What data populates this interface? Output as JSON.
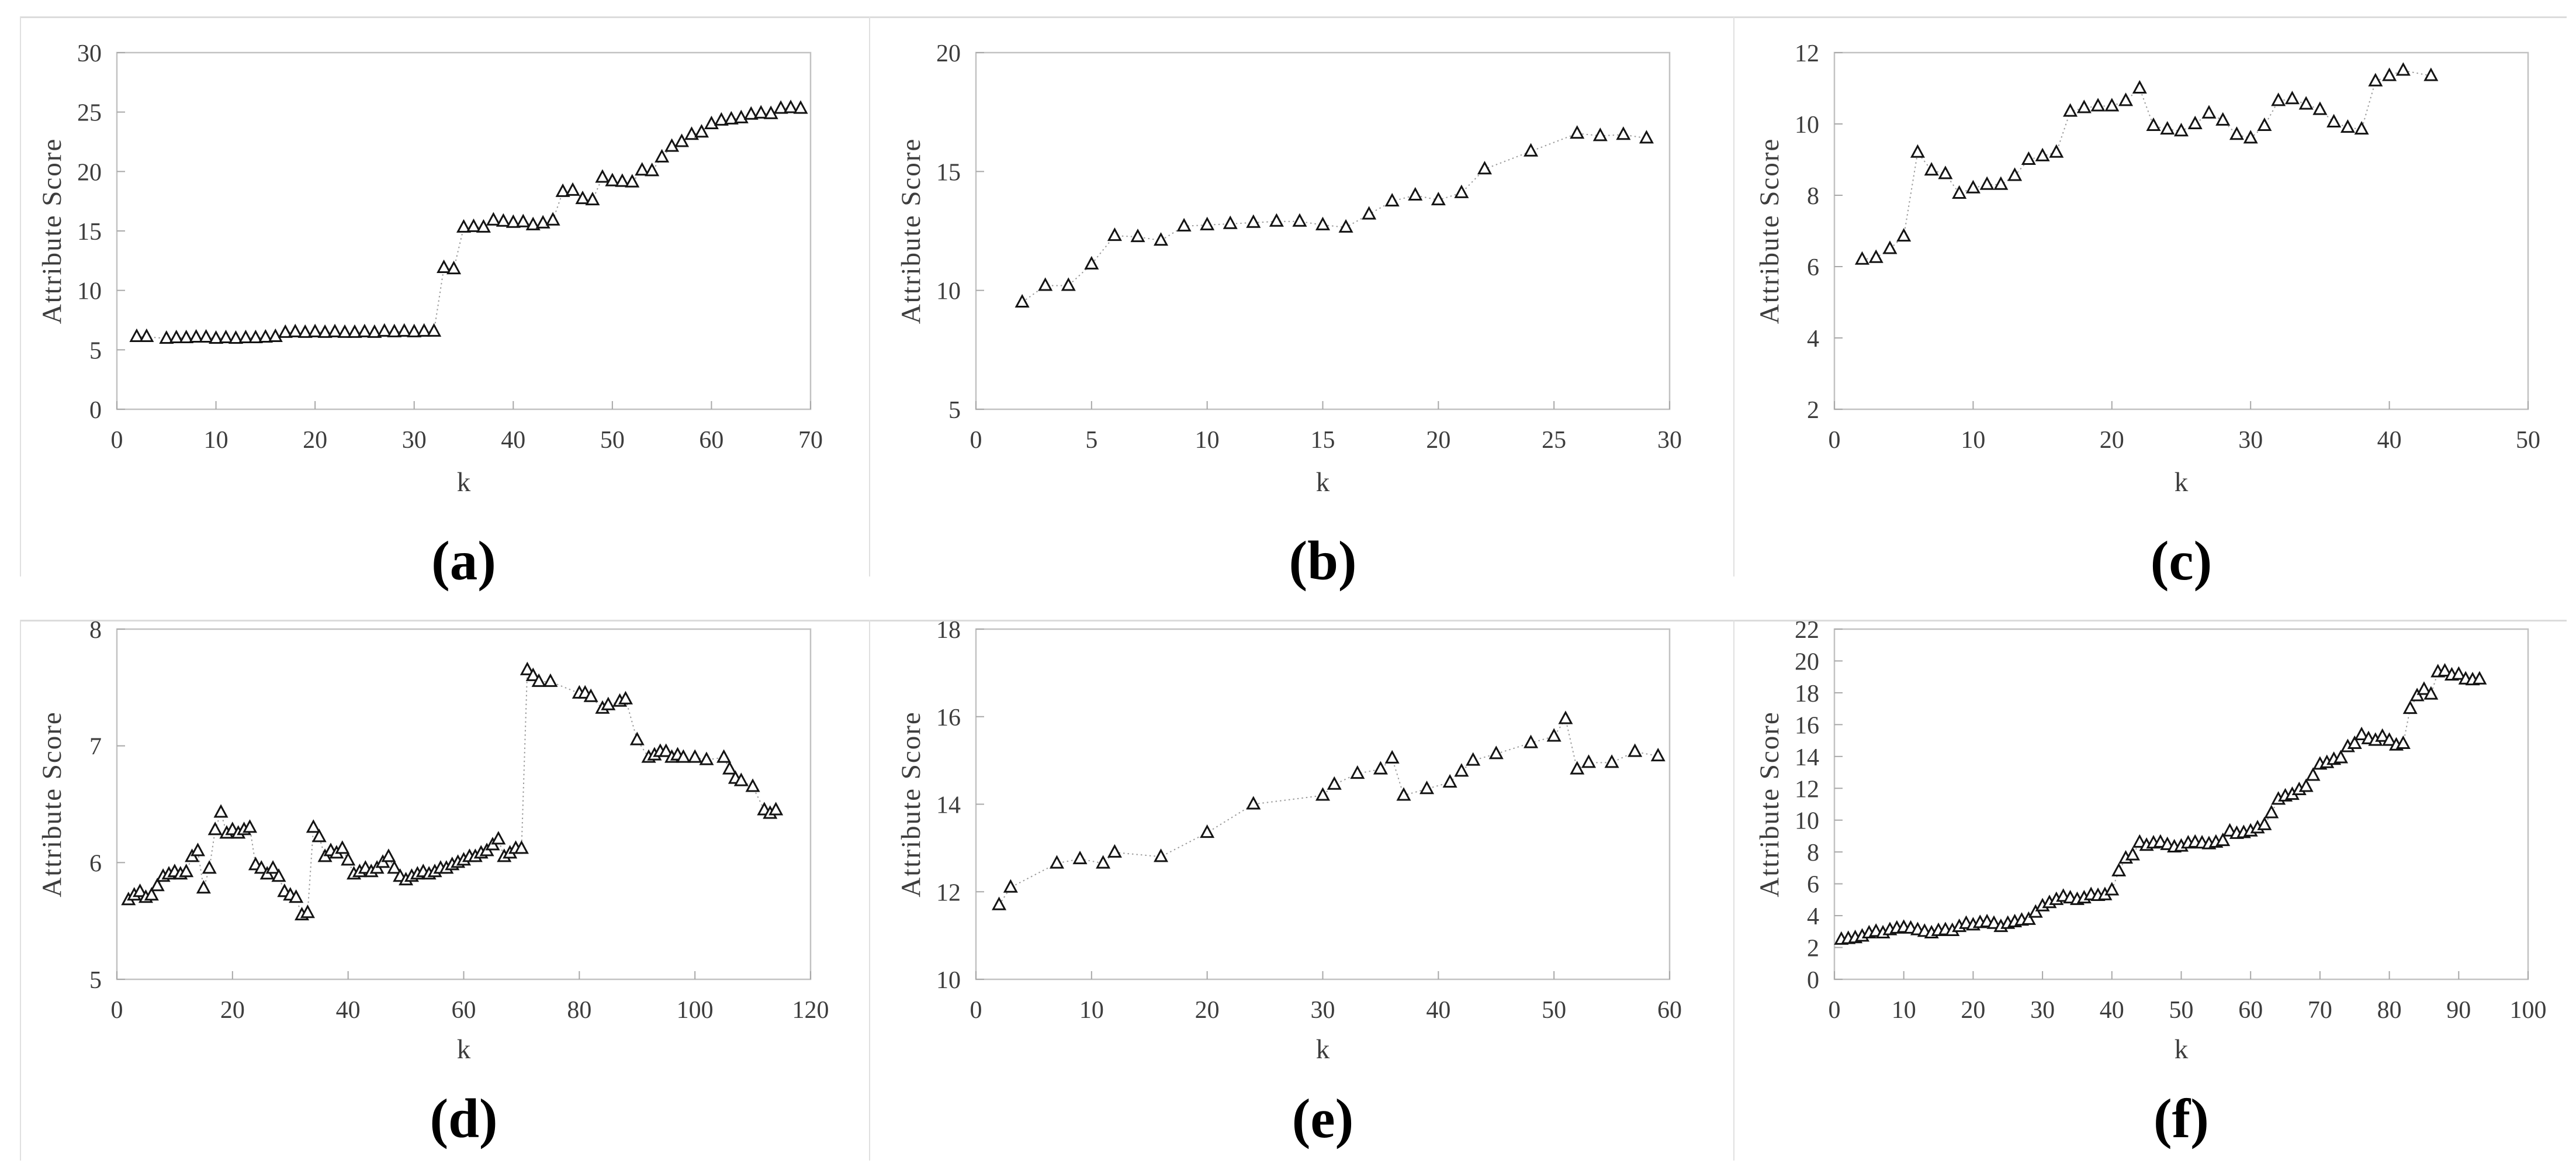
{
  "figure": {
    "panels": [
      {
        "id": "a",
        "caption": "(a)",
        "row": 0
      },
      {
        "id": "b",
        "caption": "(b)",
        "row": 0
      },
      {
        "id": "c",
        "caption": "(c)",
        "row": 0
      },
      {
        "id": "d",
        "caption": "(d)",
        "row": 1
      },
      {
        "id": "e",
        "caption": "(e)",
        "row": 1
      },
      {
        "id": "f",
        "caption": "(f)",
        "row": 1
      }
    ],
    "colors": {
      "axis": "#c2c2c2",
      "tick": "#a8a8a8",
      "label": "#3d3d3d",
      "marker_stroke": "#141414",
      "marker_fill": "#ffffff",
      "line": "#9b9b9b",
      "rule": "#dcdcdc",
      "caption": "#000000",
      "background": "#ffffff"
    }
  },
  "chart_data": [
    {
      "type": "scatter",
      "panel": "a",
      "title": "",
      "xlabel": "k",
      "ylabel": "Attribute Score",
      "xlim": [
        0,
        70
      ],
      "ylim": [
        0,
        30
      ],
      "xticks": [
        0,
        10,
        20,
        30,
        40,
        50,
        60,
        70
      ],
      "yticks": [
        0,
        5,
        10,
        15,
        20,
        25,
        30
      ],
      "marker": "open-triangle",
      "line_style": "dotted",
      "grid": false,
      "legend": "none",
      "x": [
        2,
        3,
        5,
        6,
        7,
        8,
        9,
        10,
        11,
        12,
        13,
        14,
        15,
        16,
        17,
        18,
        19,
        20,
        21,
        22,
        23,
        24,
        25,
        26,
        27,
        28,
        29,
        30,
        31,
        32,
        33,
        34,
        35,
        36,
        37,
        38,
        39,
        40,
        41,
        42,
        43,
        44,
        45,
        46,
        47,
        48,
        49,
        50,
        51,
        52,
        53,
        54,
        55,
        56,
        57,
        58,
        59,
        60,
        61,
        62,
        63,
        64,
        65,
        66,
        67,
        68,
        69
      ],
      "y": [
        6.1,
        6.1,
        5.95,
        6.0,
        6.0,
        6.05,
        6.05,
        5.95,
        6.0,
        5.95,
        6.0,
        6.0,
        6.05,
        6.1,
        6.45,
        6.5,
        6.45,
        6.5,
        6.45,
        6.5,
        6.45,
        6.45,
        6.5,
        6.45,
        6.55,
        6.5,
        6.55,
        6.5,
        6.55,
        6.55,
        11.9,
        11.8,
        15.3,
        15.35,
        15.3,
        15.9,
        15.8,
        15.7,
        15.75,
        15.5,
        15.65,
        15.9,
        18.3,
        18.4,
        17.7,
        17.6,
        19.5,
        19.2,
        19.15,
        19.1,
        20.1,
        20.05,
        21.2,
        22.1,
        22.5,
        23.1,
        23.3,
        24.0,
        24.3,
        24.4,
        24.5,
        24.8,
        24.9,
        24.85,
        25.3,
        25.35,
        25.3
      ]
    },
    {
      "type": "scatter",
      "panel": "b",
      "title": "",
      "xlabel": "k",
      "ylabel": "Attribute Score",
      "xlim": [
        0,
        30
      ],
      "ylim": [
        5,
        20
      ],
      "xticks": [
        0,
        5,
        10,
        15,
        20,
        25,
        30
      ],
      "yticks": [
        5,
        10,
        15,
        20
      ],
      "marker": "open-triangle",
      "line_style": "dotted",
      "grid": false,
      "legend": "none",
      "x": [
        2,
        3,
        4,
        5,
        6,
        7,
        8,
        9,
        10,
        11,
        12,
        13,
        14,
        15,
        16,
        17,
        18,
        19,
        20,
        21,
        22,
        24,
        26,
        27,
        28,
        29
      ],
      "y": [
        9.5,
        10.2,
        10.2,
        11.1,
        12.3,
        12.25,
        12.1,
        12.7,
        12.75,
        12.8,
        12.85,
        12.9,
        12.9,
        12.75,
        12.65,
        13.2,
        13.75,
        14.0,
        13.8,
        14.1,
        15.1,
        15.85,
        16.6,
        16.5,
        16.55,
        16.4
      ]
    },
    {
      "type": "scatter",
      "panel": "c",
      "title": "",
      "xlabel": "k",
      "ylabel": "Attribute Score",
      "xlim": [
        0,
        50
      ],
      "ylim": [
        2,
        12
      ],
      "xticks": [
        0,
        10,
        20,
        30,
        40,
        50
      ],
      "yticks": [
        2,
        4,
        6,
        8,
        10,
        12
      ],
      "marker": "open-triangle",
      "line_style": "dotted",
      "grid": false,
      "legend": "none",
      "x": [
        2,
        3,
        4,
        5,
        6,
        7,
        8,
        9,
        10,
        11,
        12,
        13,
        14,
        15,
        16,
        17,
        18,
        19,
        20,
        21,
        22,
        23,
        24,
        25,
        26,
        27,
        28,
        29,
        30,
        31,
        32,
        33,
        34,
        35,
        36,
        37,
        38,
        39,
        40,
        41,
        43
      ],
      "y": [
        6.2,
        6.25,
        6.5,
        6.85,
        9.2,
        8.7,
        8.6,
        8.05,
        8.2,
        8.3,
        8.3,
        8.55,
        9.0,
        9.1,
        9.2,
        10.35,
        10.45,
        10.5,
        10.5,
        10.65,
        11.0,
        9.95,
        9.85,
        9.8,
        10.0,
        10.3,
        10.1,
        9.7,
        9.6,
        9.95,
        10.65,
        10.7,
        10.55,
        10.4,
        10.05,
        9.9,
        9.85,
        11.2,
        11.35,
        11.5,
        11.35
      ]
    },
    {
      "type": "scatter",
      "panel": "d",
      "title": "",
      "xlabel": "k",
      "ylabel": "Attribute Score",
      "xlim": [
        0,
        120
      ],
      "ylim": [
        5,
        8
      ],
      "xticks": [
        0,
        20,
        40,
        60,
        80,
        100,
        120
      ],
      "yticks": [
        5,
        6,
        7,
        8
      ],
      "marker": "open-triangle",
      "line_style": "dotted",
      "grid": false,
      "legend": "none",
      "x": [
        2,
        3,
        4,
        5,
        6,
        7,
        8,
        9,
        10,
        11,
        12,
        13,
        14,
        15,
        16,
        17,
        18,
        19,
        20,
        21,
        22,
        23,
        24,
        25,
        26,
        27,
        28,
        29,
        30,
        31,
        32,
        33,
        34,
        35,
        36,
        37,
        38,
        39,
        40,
        41,
        42,
        43,
        44,
        45,
        46,
        47,
        48,
        49,
        50,
        51,
        52,
        53,
        54,
        55,
        56,
        57,
        58,
        59,
        60,
        61,
        62,
        63,
        64,
        65,
        66,
        67,
        68,
        69,
        70,
        71,
        72,
        73,
        75,
        80,
        81,
        82,
        84,
        85,
        87,
        88,
        90,
        92,
        93,
        94,
        95,
        96,
        97,
        98,
        100,
        102,
        105,
        106,
        107,
        108,
        110,
        112,
        113,
        114
      ],
      "y": [
        5.68,
        5.72,
        5.75,
        5.7,
        5.72,
        5.8,
        5.88,
        5.9,
        5.92,
        5.9,
        5.92,
        6.05,
        6.1,
        5.78,
        5.95,
        6.28,
        6.43,
        6.25,
        6.28,
        6.25,
        6.28,
        6.3,
        5.98,
        5.95,
        5.9,
        5.95,
        5.88,
        5.75,
        5.72,
        5.7,
        5.55,
        5.57,
        6.3,
        6.22,
        6.05,
        6.1,
        6.08,
        6.12,
        6.02,
        5.9,
        5.92,
        5.95,
        5.92,
        5.95,
        6.0,
        6.05,
        5.95,
        5.88,
        5.85,
        5.88,
        5.9,
        5.92,
        5.9,
        5.92,
        5.95,
        5.95,
        5.98,
        6.0,
        6.02,
        6.05,
        6.05,
        6.08,
        6.1,
        6.15,
        6.2,
        6.05,
        6.08,
        6.12,
        6.12,
        7.65,
        7.6,
        7.55,
        7.55,
        7.45,
        7.45,
        7.42,
        7.32,
        7.35,
        7.38,
        7.4,
        7.05,
        6.9,
        6.92,
        6.95,
        6.95,
        6.9,
        6.92,
        6.9,
        6.9,
        6.88,
        6.9,
        6.8,
        6.72,
        6.7,
        6.65,
        6.45,
        6.42,
        6.45
      ]
    },
    {
      "type": "scatter",
      "panel": "e",
      "title": "",
      "xlabel": "k",
      "ylabel": "Attribute Score",
      "xlim": [
        0,
        60
      ],
      "ylim": [
        10,
        18
      ],
      "xticks": [
        0,
        10,
        20,
        30,
        40,
        50,
        60
      ],
      "yticks": [
        10,
        12,
        14,
        16,
        18
      ],
      "marker": "open-triangle",
      "line_style": "dotted",
      "grid": false,
      "legend": "none",
      "x": [
        2,
        3,
        7,
        9,
        11,
        12,
        16,
        20,
        24,
        30,
        31,
        33,
        35,
        36,
        37,
        39,
        41,
        42,
        43,
        45,
        48,
        50,
        51,
        52,
        53,
        55,
        57,
        59
      ],
      "y": [
        11.7,
        12.1,
        12.65,
        12.75,
        12.65,
        12.9,
        12.8,
        13.35,
        14.0,
        14.2,
        14.45,
        14.7,
        14.8,
        15.05,
        14.2,
        14.35,
        14.5,
        14.75,
        15.0,
        15.15,
        15.4,
        15.55,
        15.95,
        14.8,
        14.95,
        14.95,
        15.2,
        15.1
      ]
    },
    {
      "type": "scatter",
      "panel": "f",
      "title": "",
      "xlabel": "k",
      "ylabel": "Attribute Score",
      "xlim": [
        0,
        100
      ],
      "ylim": [
        0,
        22
      ],
      "xticks": [
        0,
        10,
        20,
        30,
        40,
        50,
        60,
        70,
        80,
        90,
        100
      ],
      "yticks": [
        0,
        2,
        4,
        6,
        8,
        10,
        12,
        14,
        16,
        18,
        20,
        22
      ],
      "marker": "open-triangle",
      "line_style": "dotted",
      "grid": false,
      "legend": "none",
      "x": [
        1,
        2,
        3,
        4,
        5,
        6,
        7,
        8,
        9,
        10,
        11,
        12,
        13,
        14,
        15,
        16,
        17,
        18,
        19,
        20,
        21,
        22,
        23,
        24,
        25,
        26,
        27,
        28,
        29,
        30,
        31,
        32,
        33,
        34,
        35,
        36,
        37,
        38,
        39,
        40,
        41,
        42,
        43,
        44,
        45,
        46,
        47,
        48,
        49,
        50,
        51,
        52,
        53,
        54,
        55,
        56,
        57,
        58,
        59,
        60,
        61,
        62,
        63,
        64,
        65,
        66,
        67,
        68,
        69,
        70,
        71,
        72,
        73,
        74,
        75,
        76,
        77,
        78,
        79,
        80,
        81,
        82,
        83,
        84,
        85,
        86,
        87,
        88,
        89,
        90,
        91,
        92,
        93
      ],
      "y": [
        2.5,
        2.55,
        2.6,
        2.7,
        2.9,
        3.0,
        2.9,
        3.1,
        3.2,
        3.25,
        3.2,
        3.1,
        3.0,
        2.9,
        3.05,
        3.1,
        3.05,
        3.3,
        3.5,
        3.4,
        3.55,
        3.6,
        3.5,
        3.3,
        3.5,
        3.6,
        3.7,
        3.75,
        4.2,
        4.6,
        4.8,
        5.0,
        5.2,
        5.1,
        5.0,
        5.1,
        5.3,
        5.25,
        5.3,
        5.6,
        6.8,
        7.6,
        7.8,
        8.6,
        8.4,
        8.55,
        8.6,
        8.45,
        8.3,
        8.35,
        8.55,
        8.6,
        8.55,
        8.5,
        8.6,
        8.7,
        9.3,
        9.15,
        9.2,
        9.3,
        9.5,
        9.7,
        10.45,
        11.3,
        11.5,
        11.6,
        11.9,
        12.1,
        12.8,
        13.5,
        13.6,
        13.8,
        13.9,
        14.6,
        14.8,
        15.35,
        15.1,
        15.0,
        15.25,
        15.0,
        14.7,
        14.8,
        17.0,
        17.8,
        18.2,
        17.9,
        19.3,
        19.35,
        19.1,
        19.15,
        18.85,
        18.8,
        18.85
      ]
    }
  ]
}
